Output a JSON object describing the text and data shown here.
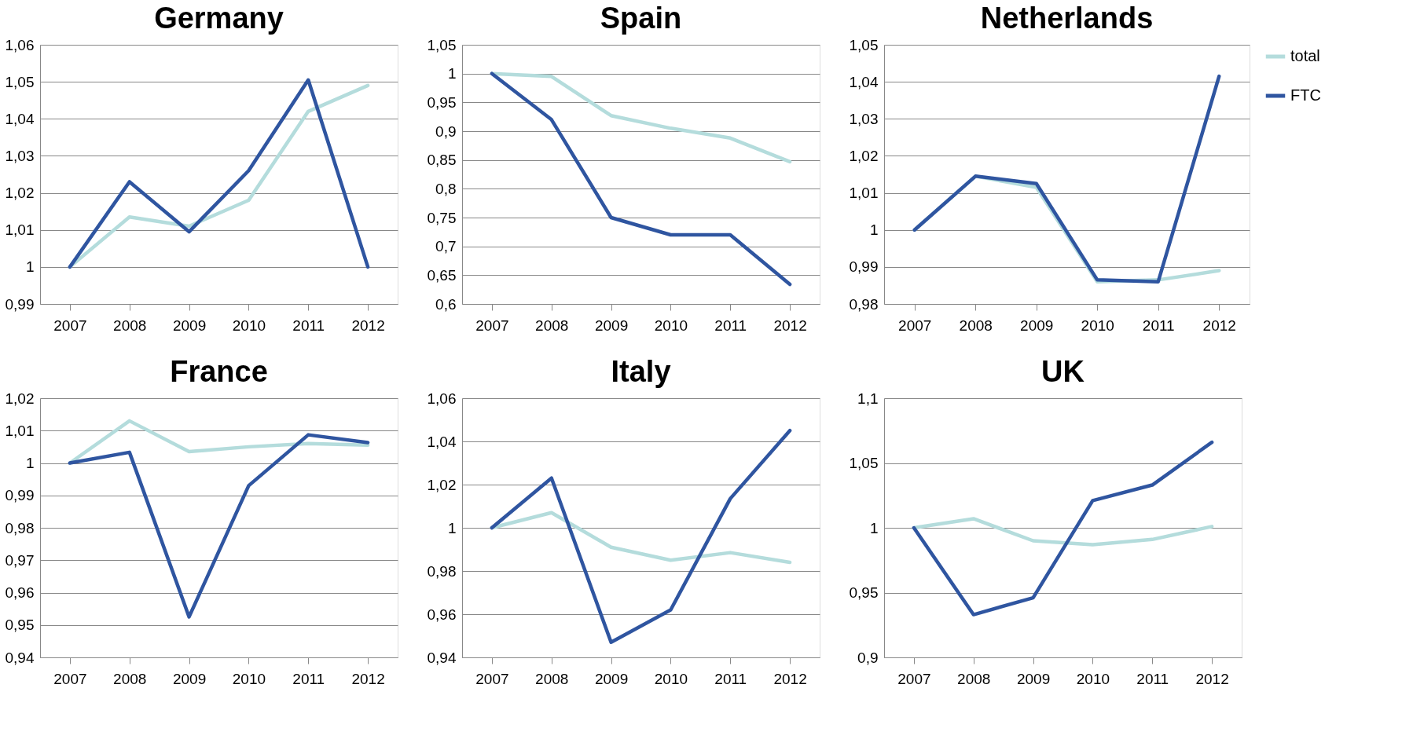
{
  "chart_data": [
    {
      "type": "line",
      "title": "Germany",
      "categories": [
        "2007",
        "2008",
        "2009",
        "2010",
        "2011",
        "2012"
      ],
      "ylim": [
        0.99,
        1.06
      ],
      "yticks": [
        {
          "value": 0.99,
          "label": "0,99"
        },
        {
          "value": 1,
          "label": "1"
        },
        {
          "value": 1.01,
          "label": "1,01"
        },
        {
          "value": 1.02,
          "label": "1,02"
        },
        {
          "value": 1.03,
          "label": "1,03"
        },
        {
          "value": 1.04,
          "label": "1,04"
        },
        {
          "value": 1.05,
          "label": "1,05"
        },
        {
          "value": 1.06,
          "label": "1,06"
        }
      ],
      "grid": "y",
      "legend": false,
      "marker": "none",
      "line_style": "solid",
      "series": [
        {
          "color": "#b4dcdc",
          "values": [
            1,
            1.0135,
            1.011,
            1.018,
            1.042,
            1.049
          ]
        },
        {
          "color": "#2f55a0",
          "values": [
            1,
            1.023,
            1.0095,
            1.026,
            1.0505,
            1.0
          ]
        }
      ]
    },
    {
      "type": "line",
      "title": "Spain",
      "categories": [
        "2007",
        "2008",
        "2009",
        "2010",
        "2011",
        "2012"
      ],
      "ylim": [
        0.6,
        1.05
      ],
      "yticks": [
        {
          "value": 0.6,
          "label": "0,6"
        },
        {
          "value": 0.65,
          "label": "0,65"
        },
        {
          "value": 0.7,
          "label": "0,7"
        },
        {
          "value": 0.75,
          "label": "0,75"
        },
        {
          "value": 0.8,
          "label": "0,8"
        },
        {
          "value": 0.85,
          "label": "0,85"
        },
        {
          "value": 0.9,
          "label": "0,9"
        },
        {
          "value": 0.95,
          "label": "0,95"
        },
        {
          "value": 1,
          "label": "1"
        },
        {
          "value": 1.05,
          "label": "1,05"
        }
      ],
      "grid": "y",
      "legend": false,
      "marker": "none",
      "line_style": "solid",
      "series": [
        {
          "color": "#b4dcdc",
          "values": [
            1,
            0.995,
            0.927,
            0.905,
            0.888,
            0.847
          ]
        },
        {
          "color": "#2f55a0",
          "values": [
            1,
            0.92,
            0.75,
            0.72,
            0.72,
            0.634
          ]
        }
      ]
    },
    {
      "type": "line",
      "title": "Netherlands",
      "categories": [
        "2007",
        "2008",
        "2009",
        "2010",
        "2011",
        "2012"
      ],
      "ylim": [
        0.98,
        1.05
      ],
      "yticks": [
        {
          "value": 0.98,
          "label": "0,98"
        },
        {
          "value": 0.99,
          "label": "0,99"
        },
        {
          "value": 1,
          "label": "1"
        },
        {
          "value": 1.01,
          "label": "1,01"
        },
        {
          "value": 1.02,
          "label": "1,02"
        },
        {
          "value": 1.03,
          "label": "1,03"
        },
        {
          "value": 1.04,
          "label": "1,04"
        },
        {
          "value": 1.05,
          "label": "1,05"
        }
      ],
      "grid": "y",
      "legend": "right",
      "marker": "none",
      "line_style": "solid",
      "series": [
        {
          "name": "total",
          "color": "#b4dcdc",
          "values": [
            1,
            1.0145,
            1.0115,
            0.986,
            0.9865,
            0.989
          ]
        },
        {
          "name": "FTC",
          "color": "#2f55a0",
          "values": [
            1,
            1.0145,
            1.0125,
            0.9865,
            0.986,
            1.0415
          ]
        }
      ]
    },
    {
      "type": "line",
      "title": "France",
      "categories": [
        "2007",
        "2008",
        "2009",
        "2010",
        "2011",
        "2012"
      ],
      "ylim": [
        0.94,
        1.02
      ],
      "yticks": [
        {
          "value": 0.94,
          "label": "0,94"
        },
        {
          "value": 0.95,
          "label": "0,95"
        },
        {
          "value": 0.96,
          "label": "0,96"
        },
        {
          "value": 0.97,
          "label": "0,97"
        },
        {
          "value": 0.98,
          "label": "0,98"
        },
        {
          "value": 0.99,
          "label": "0,99"
        },
        {
          "value": 1,
          "label": "1"
        },
        {
          "value": 1.01,
          "label": "1,01"
        },
        {
          "value": 1.02,
          "label": "1,02"
        }
      ],
      "grid": "y",
      "legend": false,
      "marker": "none",
      "line_style": "solid",
      "series": [
        {
          "color": "#b4dcdc",
          "values": [
            1,
            1.013,
            1.0035,
            1.005,
            1.006,
            1.0055
          ]
        },
        {
          "color": "#2f55a0",
          "values": [
            1,
            1.0033,
            0.9525,
            0.993,
            1.0087,
            1.0063
          ]
        }
      ]
    },
    {
      "type": "line",
      "title": "Italy",
      "categories": [
        "2007",
        "2008",
        "2009",
        "2010",
        "2011",
        "2012"
      ],
      "ylim": [
        0.94,
        1.06
      ],
      "yticks": [
        {
          "value": 0.94,
          "label": "0,94"
        },
        {
          "value": 0.96,
          "label": "0,96"
        },
        {
          "value": 0.98,
          "label": "0,98"
        },
        {
          "value": 1,
          "label": "1"
        },
        {
          "value": 1.02,
          "label": "1,02"
        },
        {
          "value": 1.04,
          "label": "1,04"
        },
        {
          "value": 1.06,
          "label": "1,06"
        }
      ],
      "grid": "y",
      "legend": false,
      "marker": "none",
      "line_style": "solid",
      "series": [
        {
          "color": "#b4dcdc",
          "values": [
            1,
            1.007,
            0.991,
            0.985,
            0.9885,
            0.984
          ]
        },
        {
          "color": "#2f55a0",
          "values": [
            1,
            1.023,
            0.947,
            0.962,
            1.0135,
            1.045
          ]
        }
      ]
    },
    {
      "type": "line",
      "title": "UK",
      "categories": [
        "2007",
        "2008",
        "2009",
        "2010",
        "2011",
        "2012"
      ],
      "ylim": [
        0.9,
        1.1
      ],
      "yticks": [
        {
          "value": 0.9,
          "label": "0,9"
        },
        {
          "value": 0.95,
          "label": "0,95"
        },
        {
          "value": 1,
          "label": "1"
        },
        {
          "value": 1.05,
          "label": "1,05"
        },
        {
          "value": 1.1,
          "label": "1,1"
        }
      ],
      "grid": "y",
      "legend": false,
      "marker": "none",
      "line_style": "solid",
      "series": [
        {
          "color": "#b4dcdc",
          "values": [
            1,
            1.007,
            0.99,
            0.987,
            0.991,
            1.001
          ]
        },
        {
          "color": "#2f55a0",
          "values": [
            1,
            0.933,
            0.946,
            1.021,
            1.033,
            1.066
          ]
        }
      ]
    }
  ]
}
